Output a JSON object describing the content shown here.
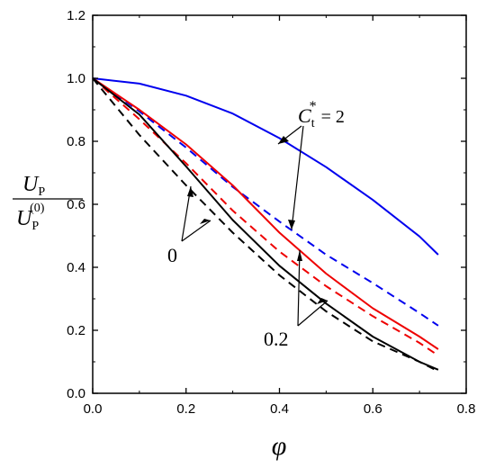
{
  "chart_data": {
    "type": "line",
    "title": "",
    "xlabel": "φ",
    "ylabel": {
      "num_main": "U",
      "num_sub": "P",
      "den_main": "U",
      "den_sub": "P",
      "den_sup": "(0)"
    },
    "xlim": [
      0,
      0.8
    ],
    "ylim": [
      0,
      1.2
    ],
    "x_ticks": [
      "0.0",
      "0.2",
      "0.4",
      "0.6",
      "0.8"
    ],
    "y_ticks": [
      "0.0",
      "0.2",
      "0.4",
      "0.6",
      "0.8",
      "1.0",
      "1.2"
    ],
    "x_tick_values": [
      0,
      0.2,
      0.4,
      0.6,
      0.8
    ],
    "y_tick_values": [
      0,
      0.2,
      0.4,
      0.6,
      0.8,
      1.0,
      1.2
    ],
    "grid": false,
    "legend": "none",
    "series": [
      {
        "color": "#0000ee",
        "dash": "solid",
        "x": [
          0,
          0.1,
          0.2,
          0.3,
          0.4,
          0.5,
          0.6,
          0.7,
          0.74
        ],
        "y": [
          1.0,
          0.983,
          0.945,
          0.888,
          0.81,
          0.718,
          0.614,
          0.498,
          0.44
        ]
      },
      {
        "color": "#0000ee",
        "dash": "dashed",
        "x": [
          0,
          0.1,
          0.2,
          0.3,
          0.4,
          0.5,
          0.6,
          0.7,
          0.74
        ],
        "y": [
          1.0,
          0.895,
          0.78,
          0.655,
          0.545,
          0.44,
          0.35,
          0.255,
          0.215
        ]
      },
      {
        "color": "#ee0000",
        "dash": "solid",
        "x": [
          0,
          0.1,
          0.2,
          0.3,
          0.4,
          0.5,
          0.6,
          0.7,
          0.74
        ],
        "y": [
          1.0,
          0.9,
          0.79,
          0.66,
          0.51,
          0.38,
          0.27,
          0.18,
          0.14
        ]
      },
      {
        "color": "#ee0000",
        "dash": "dashed",
        "x": [
          0,
          0.1,
          0.2,
          0.3,
          0.4,
          0.5,
          0.6,
          0.7,
          0.74
        ],
        "y": [
          1.0,
          0.87,
          0.73,
          0.58,
          0.45,
          0.34,
          0.245,
          0.16,
          0.12
        ]
      },
      {
        "color": "#000000",
        "dash": "solid",
        "x": [
          0,
          0.1,
          0.2,
          0.3,
          0.4,
          0.5,
          0.6,
          0.7,
          0.74
        ],
        "y": [
          1.0,
          0.885,
          0.72,
          0.55,
          0.405,
          0.285,
          0.18,
          0.1,
          0.075
        ]
      },
      {
        "color": "#000000",
        "dash": "dashed",
        "x": [
          0,
          0.1,
          0.2,
          0.3,
          0.4,
          0.5,
          0.6,
          0.7,
          0.74
        ],
        "y": [
          1.0,
          0.82,
          0.66,
          0.51,
          0.375,
          0.26,
          0.165,
          0.1,
          0.07
        ]
      }
    ],
    "annotations": [
      {
        "main": "C",
        "sub": "t",
        "sup": "*",
        "suffix": " = 2"
      },
      {
        "text": "0"
      },
      {
        "text": "0.2"
      }
    ]
  }
}
